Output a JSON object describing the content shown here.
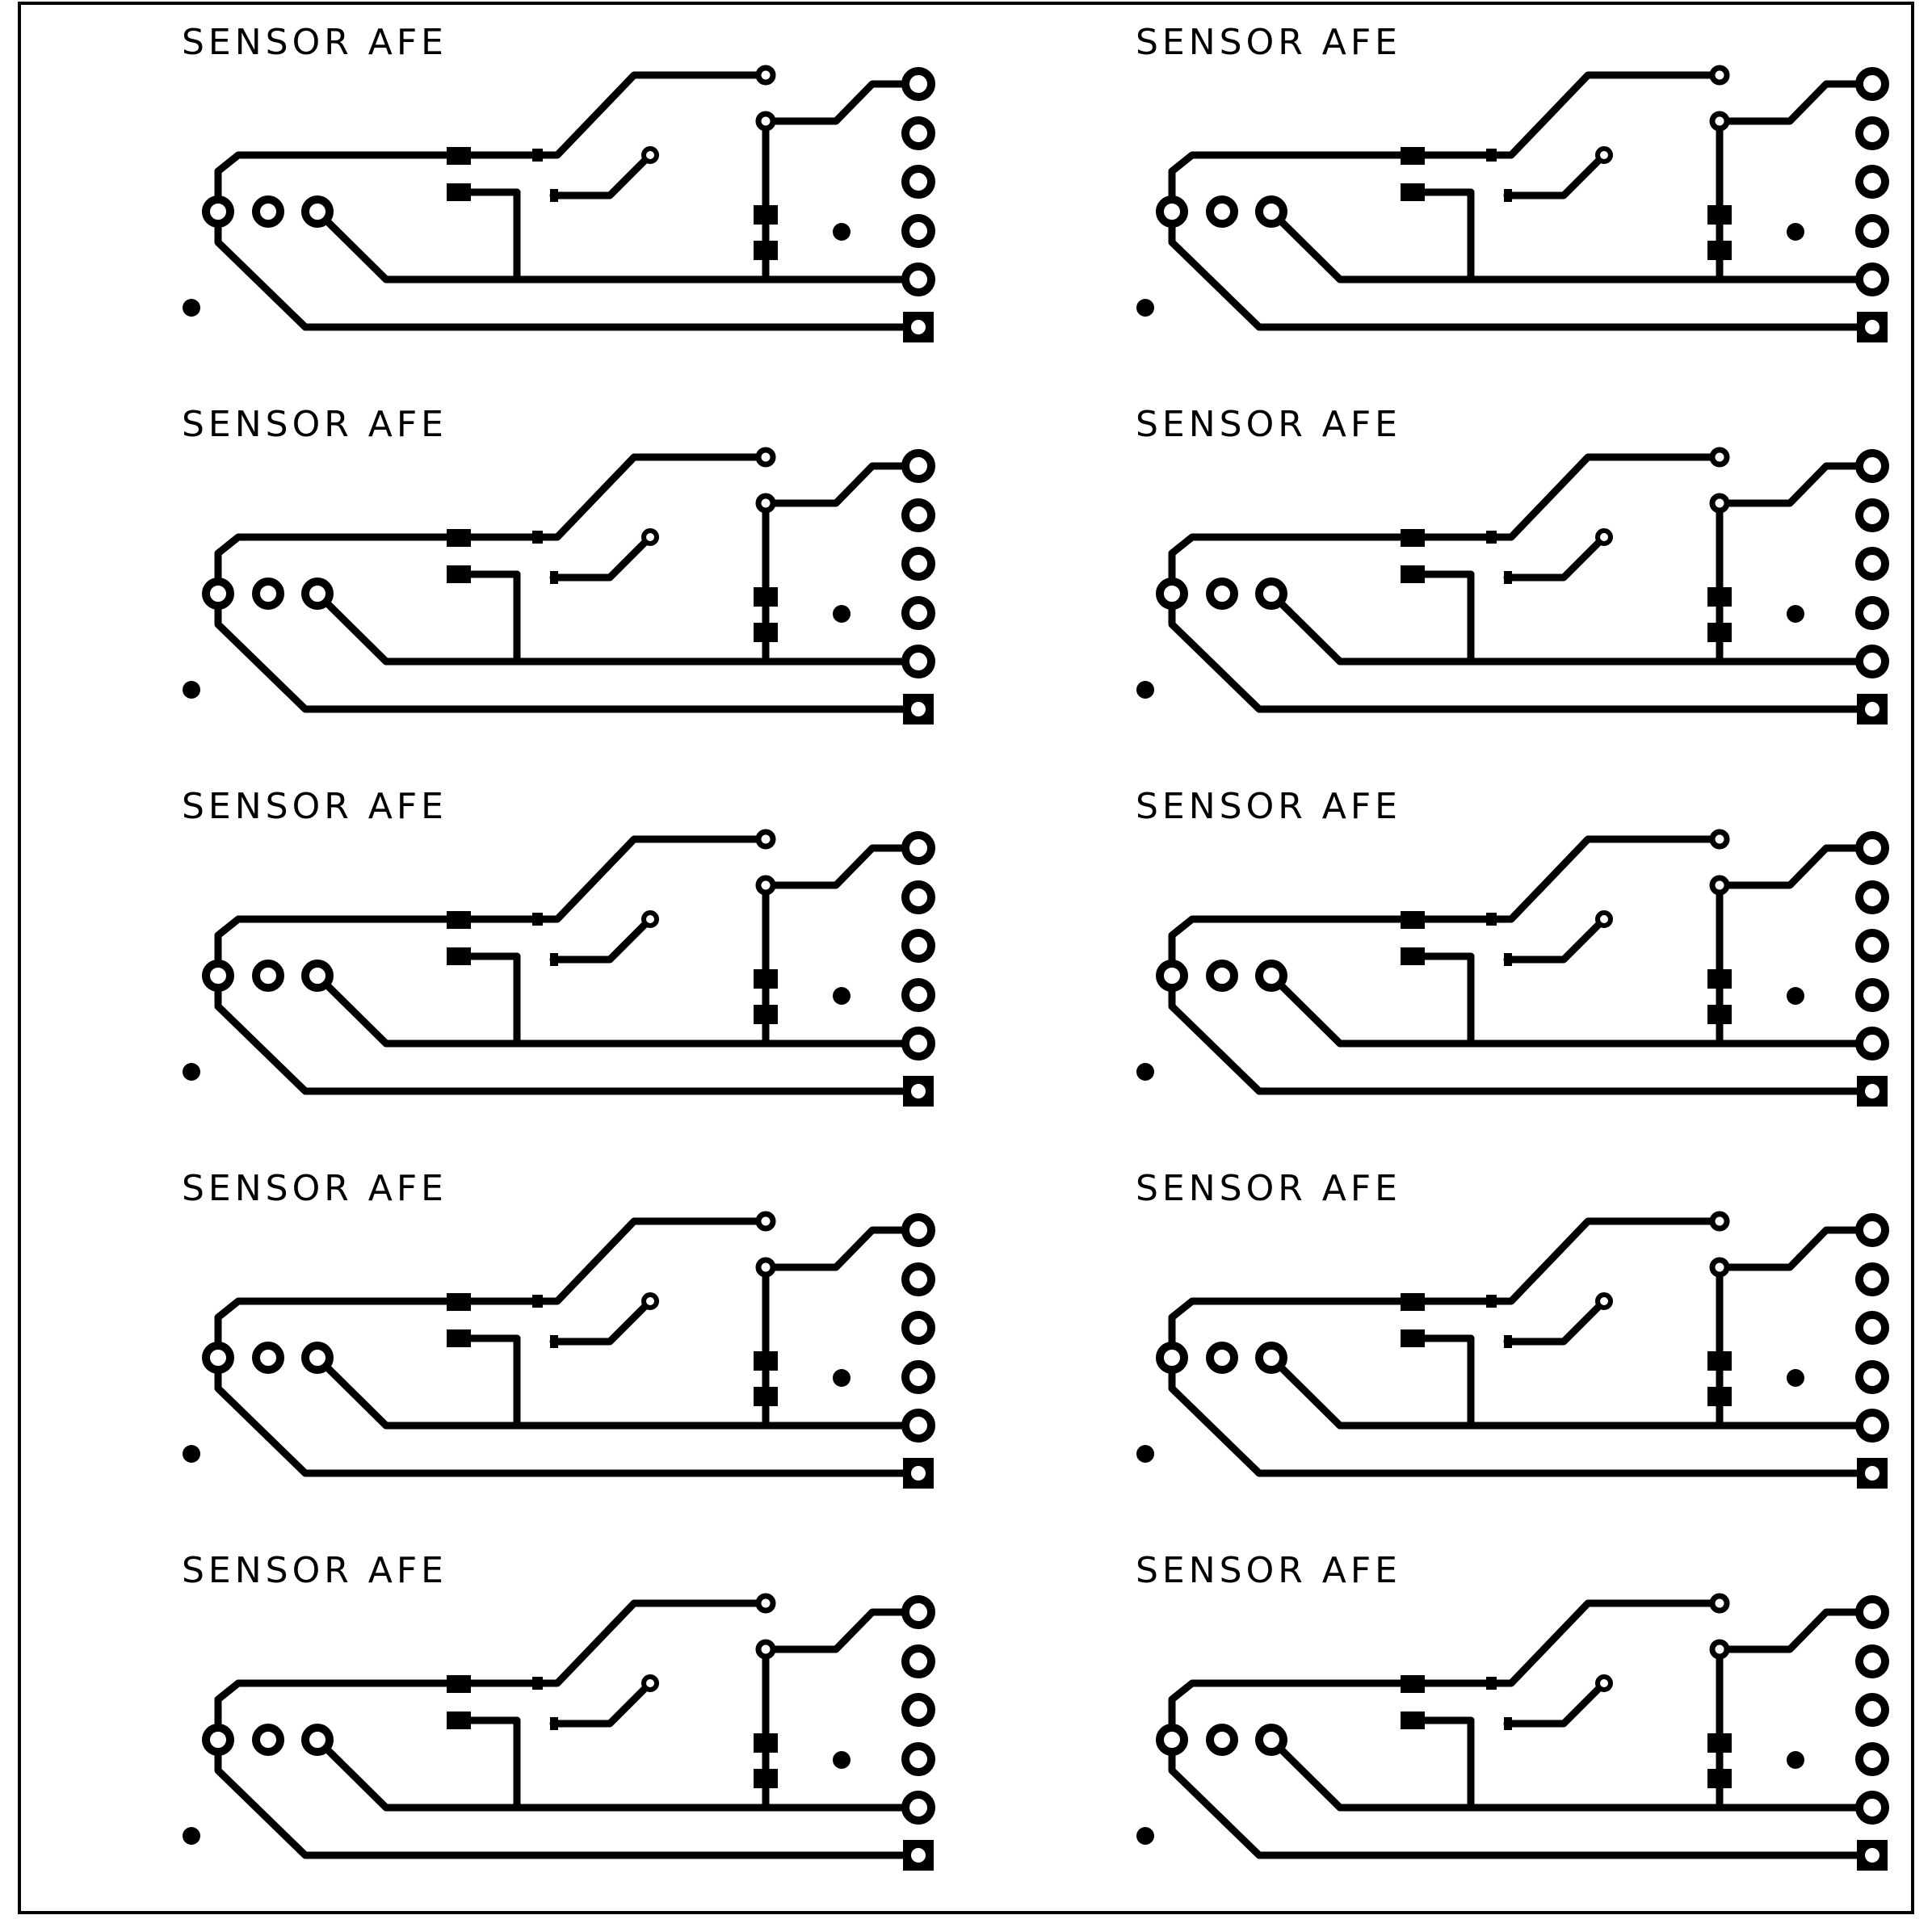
{
  "board": {
    "background": "#ffffff",
    "copper": "#000000",
    "panel_layout": {
      "columns": 2,
      "rows": 5
    },
    "panels": [
      {
        "label": "SENSOR AFE"
      },
      {
        "label": "SENSOR AFE"
      },
      {
        "label": "SENSOR AFE"
      },
      {
        "label": "SENSOR AFE"
      },
      {
        "label": "SENSOR AFE"
      },
      {
        "label": "SENSOR AFE"
      },
      {
        "label": "SENSOR AFE"
      },
      {
        "label": "SENSOR AFE"
      },
      {
        "label": "SENSOR AFE"
      },
      {
        "label": "SENSOR AFE"
      }
    ]
  }
}
